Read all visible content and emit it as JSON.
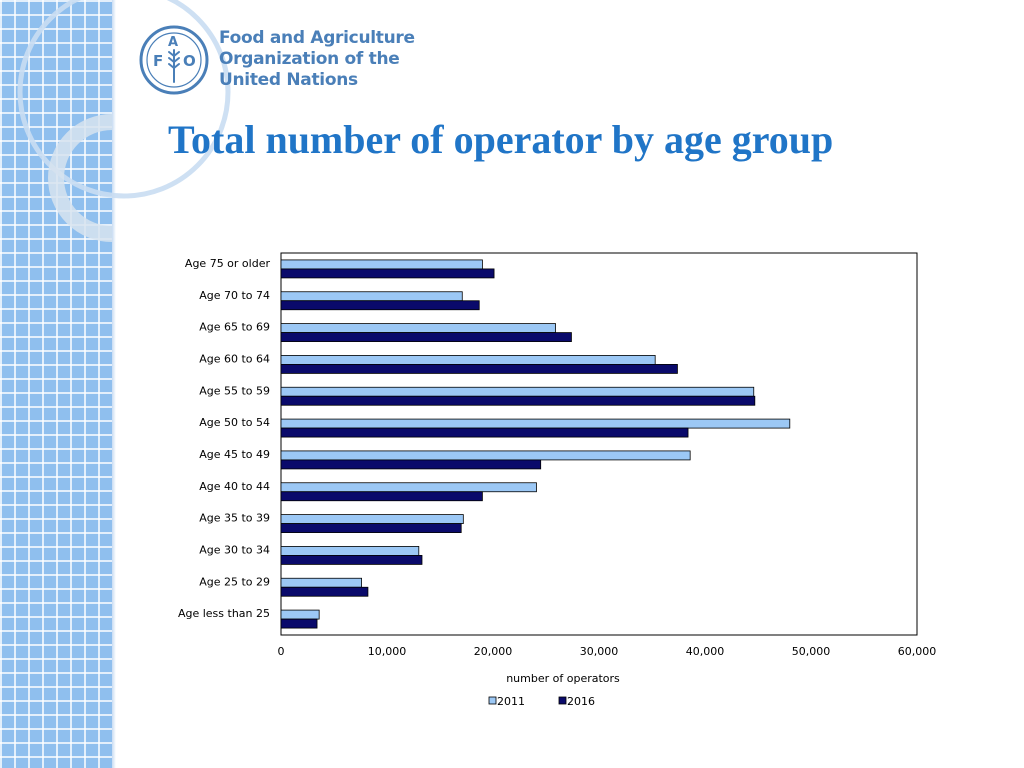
{
  "organization": {
    "line1": "Food and Agriculture",
    "line2": "Organization of the",
    "line3": "United Nations",
    "logo_letters": {
      "f": "F",
      "a": "A",
      "o": "O"
    },
    "logo_motto": "FIAT PANIS"
  },
  "slide": {
    "title": "Total number of operator by age group"
  },
  "colors": {
    "title": "#2075c7",
    "org_text": "#4a7fb8",
    "band": "#8fbfee",
    "series_2011": "#9cc8f5",
    "series_2016": "#0a0a6b"
  },
  "chart_data": {
    "type": "bar",
    "orientation": "horizontal",
    "categories": [
      "Age 75 or older",
      "Age 70 to 74",
      "Age 65 to 69",
      "Age 60 to 64",
      "Age 55 to 59",
      "Age 50 to 54",
      "Age 45 to 49",
      "Age 40 to 44",
      "Age 35 to 39",
      "Age 30 to 34",
      "Age 25 to 29",
      "Age less than 25"
    ],
    "series": [
      {
        "name": "2011",
        "color": "#9cc8f5",
        "values": [
          19000,
          17100,
          25900,
          35300,
          44600,
          48000,
          38600,
          24100,
          17200,
          13000,
          7600,
          3600
        ]
      },
      {
        "name": "2016",
        "color": "#0a0a6b",
        "values": [
          20100,
          18700,
          27400,
          37400,
          44700,
          38400,
          24500,
          19000,
          17000,
          13300,
          8200,
          3400
        ]
      }
    ],
    "xlabel": "number of operators",
    "xlim": [
      0,
      60000
    ],
    "xticks": [
      0,
      10000,
      20000,
      30000,
      40000,
      50000,
      60000
    ],
    "xtick_labels": [
      "0",
      "10,000",
      "20,000",
      "30,000",
      "40,000",
      "50,000",
      "60,000"
    ],
    "grid": false,
    "legend_position": "bottom"
  }
}
